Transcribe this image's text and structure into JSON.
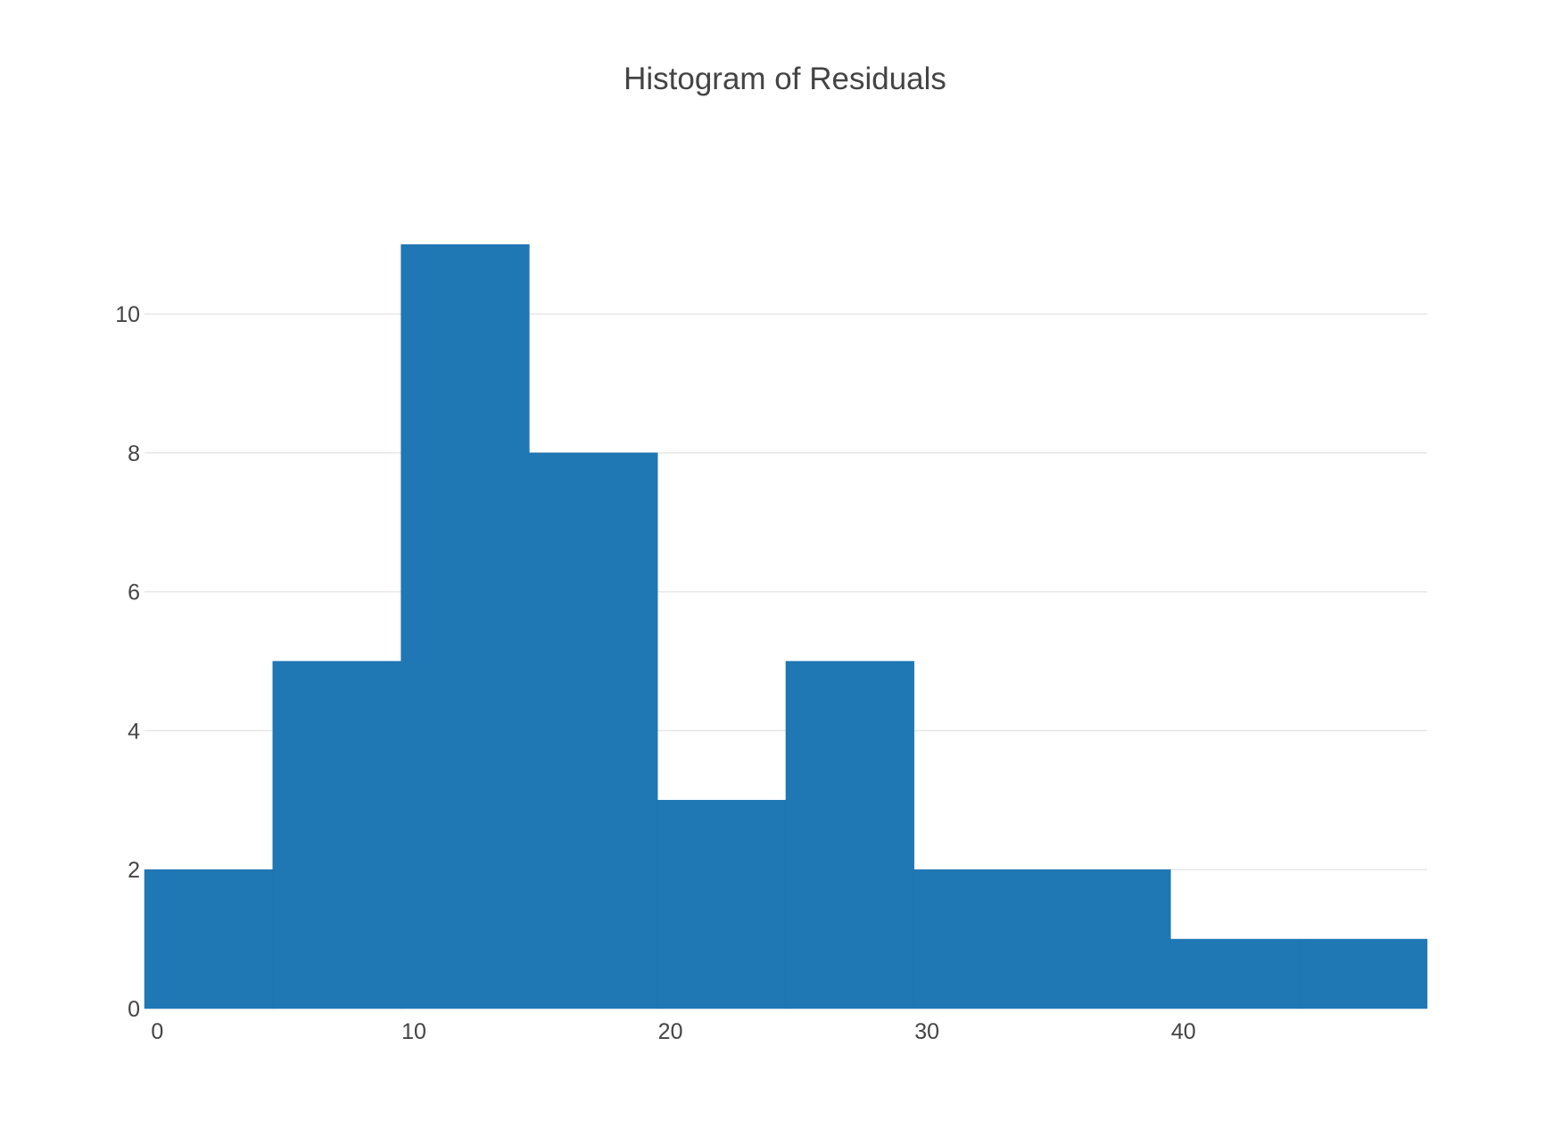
{
  "chart_data": {
    "type": "bar",
    "title": "Histogram of Residuals",
    "xlabel": "",
    "ylabel": "",
    "bins": [
      {
        "start": 0,
        "end": 5,
        "count": 2
      },
      {
        "start": 5,
        "end": 10,
        "count": 5
      },
      {
        "start": 10,
        "end": 15,
        "count": 11
      },
      {
        "start": 15,
        "end": 20,
        "count": 8
      },
      {
        "start": 20,
        "end": 25,
        "count": 3
      },
      {
        "start": 25,
        "end": 30,
        "count": 5
      },
      {
        "start": 30,
        "end": 35,
        "count": 2
      },
      {
        "start": 35,
        "end": 40,
        "count": 2
      },
      {
        "start": 40,
        "end": 45,
        "count": 1
      },
      {
        "start": 45,
        "end": 50,
        "count": 1
      }
    ],
    "xlim": [
      -0.5,
      49.5
    ],
    "ylim": [
      0,
      11.58
    ],
    "xticks": [
      0,
      10,
      20,
      30,
      40
    ],
    "yticks": [
      0,
      2,
      4,
      6,
      8,
      10
    ],
    "grid": true,
    "bar_color": "#1f77b4",
    "grid_color": "#e6e6e6",
    "text_color": "#444444"
  }
}
